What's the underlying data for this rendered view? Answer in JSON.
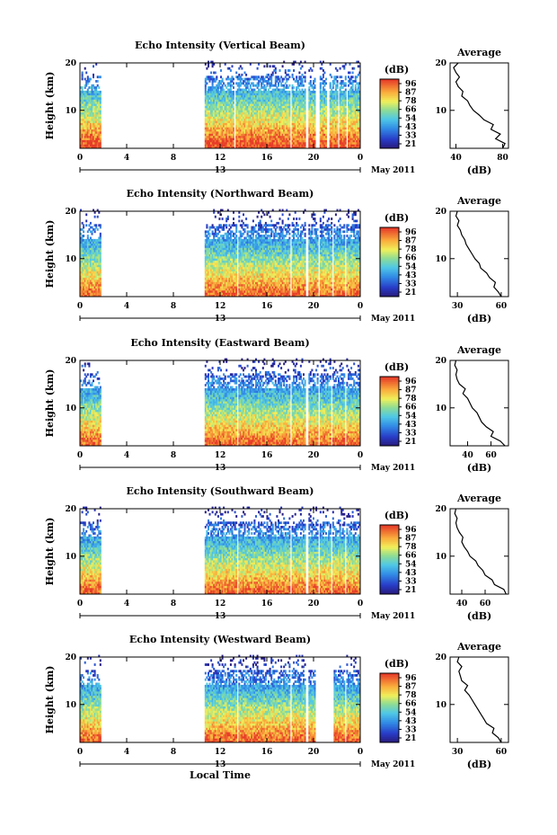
{
  "figure": {
    "date_label": "May 2011",
    "xlabel": "Local Time",
    "ylabel": "Height (km)",
    "colorbar_unit": "(dB)",
    "colorbar_ticks": [
      "96",
      "87",
      "78",
      "66",
      "54",
      "43",
      "33",
      "21"
    ],
    "avg_title": "Average",
    "avg_xlabel": "(dB)"
  },
  "chart_data": [
    {
      "type": "heatmap",
      "title": "Echo Intensity (Vertical Beam)",
      "xlabel": "",
      "ylabel": "Height (km)",
      "xlim": [
        0,
        24
      ],
      "ylim": [
        2,
        20
      ],
      "x_ticks": [
        "0",
        "4",
        "8",
        "12",
        "16",
        "20",
        "0"
      ],
      "y_ticks": [
        "20",
        "10"
      ],
      "data_gaps_hours": [
        [
          1.7,
          10.6
        ],
        [
          13.1,
          13.2
        ],
        [
          17.9,
          18.1
        ],
        [
          19.2,
          19.5
        ],
        [
          20.1,
          20.4
        ],
        [
          21.1,
          21.3
        ],
        [
          22.0,
          22.1
        ],
        [
          22.7,
          22.9
        ]
      ],
      "colorbar": {
        "label": "(dB)",
        "ticks": [
          96,
          87,
          78,
          66,
          54,
          43,
          33,
          21
        ]
      },
      "average_profile": {
        "title": "Average",
        "xlabel": "(dB)",
        "xlim": [
          35,
          85
        ],
        "x_ticks": [
          "40",
          "80"
        ],
        "height_km": [
          2,
          3,
          4,
          5,
          6,
          7,
          8,
          9,
          10,
          11,
          12,
          13,
          14,
          15,
          16,
          17,
          18,
          19,
          20
        ],
        "db": [
          80,
          82,
          74,
          78,
          70,
          72,
          64,
          60,
          55,
          52,
          50,
          45,
          46,
          42,
          40,
          43,
          40,
          38,
          42
        ]
      }
    },
    {
      "type": "heatmap",
      "title": "Echo Intensity (Northward Beam)",
      "xlabel": "",
      "ylabel": "Height (km)",
      "xlim": [
        0,
        24
      ],
      "ylim": [
        2,
        20
      ],
      "x_ticks": [
        "0",
        "4",
        "8",
        "12",
        "16",
        "20",
        "0"
      ],
      "y_ticks": [
        "20",
        "10"
      ],
      "data_gaps_hours": [
        [
          1.7,
          10.6
        ],
        [
          13.4,
          13.5
        ],
        [
          17.9,
          18.1
        ],
        [
          19.3,
          19.5
        ],
        [
          20.3,
          20.5
        ],
        [
          21.5,
          21.7
        ],
        [
          22.6,
          22.8
        ]
      ],
      "colorbar": {
        "label": "(dB)",
        "ticks": [
          96,
          87,
          78,
          66,
          54,
          43,
          33,
          21
        ]
      },
      "average_profile": {
        "title": "Average",
        "xlabel": "(dB)",
        "xlim": [
          25,
          65
        ],
        "x_ticks": [
          "30",
          "60"
        ],
        "height_km": [
          2,
          3,
          4,
          5,
          6,
          7,
          8,
          9,
          10,
          11,
          12,
          13,
          14,
          15,
          16,
          17,
          18,
          19,
          20
        ],
        "db": [
          60,
          58,
          55,
          56,
          52,
          50,
          46,
          45,
          42,
          40,
          38,
          36,
          35,
          33,
          32,
          30,
          31,
          29,
          30
        ]
      }
    },
    {
      "type": "heatmap",
      "title": "Echo Intensity (Eastward Beam)",
      "xlabel": "",
      "ylabel": "Height (km)",
      "xlim": [
        0,
        24
      ],
      "ylim": [
        2,
        20
      ],
      "x_ticks": [
        "0",
        "4",
        "8",
        "12",
        "16",
        "20",
        "0"
      ],
      "y_ticks": [
        "20",
        "10"
      ],
      "data_gaps_hours": [
        [
          1.7,
          10.6
        ],
        [
          13.4,
          13.5
        ],
        [
          17.9,
          18.1
        ],
        [
          19.3,
          19.5
        ],
        [
          20.3,
          20.5
        ],
        [
          21.4,
          21.6
        ],
        [
          22.6,
          22.8
        ]
      ],
      "colorbar": {
        "label": "(dB)",
        "ticks": [
          96,
          87,
          78,
          66,
          54,
          43,
          33,
          21
        ]
      },
      "average_profile": {
        "title": "Average",
        "xlabel": "(dB)",
        "xlim": [
          25,
          75
        ],
        "x_ticks": [
          "40",
          "60"
        ],
        "height_km": [
          2,
          3,
          4,
          5,
          6,
          7,
          8,
          9,
          10,
          11,
          12,
          13,
          14,
          15,
          16,
          17,
          18,
          19,
          20
        ],
        "db": [
          72,
          68,
          60,
          62,
          56,
          52,
          50,
          48,
          44,
          42,
          40,
          36,
          38,
          33,
          31,
          30,
          31,
          29,
          30
        ]
      }
    },
    {
      "type": "heatmap",
      "title": "Echo Intensity (Southward Beam)",
      "xlabel": "",
      "ylabel": "Height (km)",
      "xlim": [
        0,
        24
      ],
      "ylim": [
        2,
        20
      ],
      "x_ticks": [
        "0",
        "4",
        "8",
        "12",
        "16",
        "20",
        "0"
      ],
      "y_ticks": [
        "20",
        "10"
      ],
      "data_gaps_hours": [
        [
          1.7,
          10.6
        ],
        [
          13.4,
          13.5
        ],
        [
          17.9,
          18.1
        ],
        [
          19.3,
          19.5
        ],
        [
          20.3,
          20.5
        ],
        [
          21.4,
          21.6
        ],
        [
          22.6,
          22.8
        ]
      ],
      "colorbar": {
        "label": "(dB)",
        "ticks": [
          96,
          87,
          78,
          66,
          54,
          43,
          33,
          21
        ]
      },
      "average_profile": {
        "title": "Average",
        "xlabel": "(dB)",
        "xlim": [
          30,
          80
        ],
        "x_ticks": [
          "40",
          "60"
        ],
        "height_km": [
          2,
          3,
          4,
          5,
          6,
          7,
          8,
          9,
          10,
          11,
          12,
          13,
          14,
          15,
          16,
          17,
          18,
          19,
          20
        ],
        "db": [
          78,
          76,
          68,
          66,
          60,
          58,
          54,
          52,
          47,
          45,
          42,
          40,
          41,
          38,
          36,
          35,
          36,
          34,
          35
        ]
      }
    },
    {
      "type": "heatmap",
      "title": "Echo Intensity (Westward Beam)",
      "xlabel": "Local Time",
      "ylabel": "Height (km)",
      "xlim": [
        0,
        24
      ],
      "ylim": [
        2,
        20
      ],
      "x_ticks": [
        "0",
        "4",
        "8",
        "12",
        "16",
        "20",
        "0"
      ],
      "y_ticks": [
        "20",
        "10"
      ],
      "data_gaps_hours": [
        [
          1.7,
          10.6
        ],
        [
          13.4,
          13.5
        ],
        [
          17.9,
          18.1
        ],
        [
          19.3,
          19.5
        ],
        [
          20.1,
          21.7
        ],
        [
          22.6,
          22.8
        ]
      ],
      "colorbar": {
        "label": "(dB)",
        "ticks": [
          96,
          87,
          78,
          66,
          54,
          43,
          33,
          21
        ]
      },
      "average_profile": {
        "title": "Average",
        "xlabel": "(dB)",
        "xlim": [
          25,
          65
        ],
        "x_ticks": [
          "30",
          "60"
        ],
        "height_km": [
          2,
          3,
          4,
          5,
          6,
          7,
          8,
          9,
          10,
          11,
          12,
          13,
          14,
          15,
          16,
          17,
          18,
          19,
          20
        ],
        "db": [
          60,
          58,
          54,
          55,
          50,
          48,
          46,
          44,
          42,
          40,
          38,
          35,
          37,
          33,
          32,
          31,
          33,
          30,
          31
        ]
      }
    }
  ]
}
